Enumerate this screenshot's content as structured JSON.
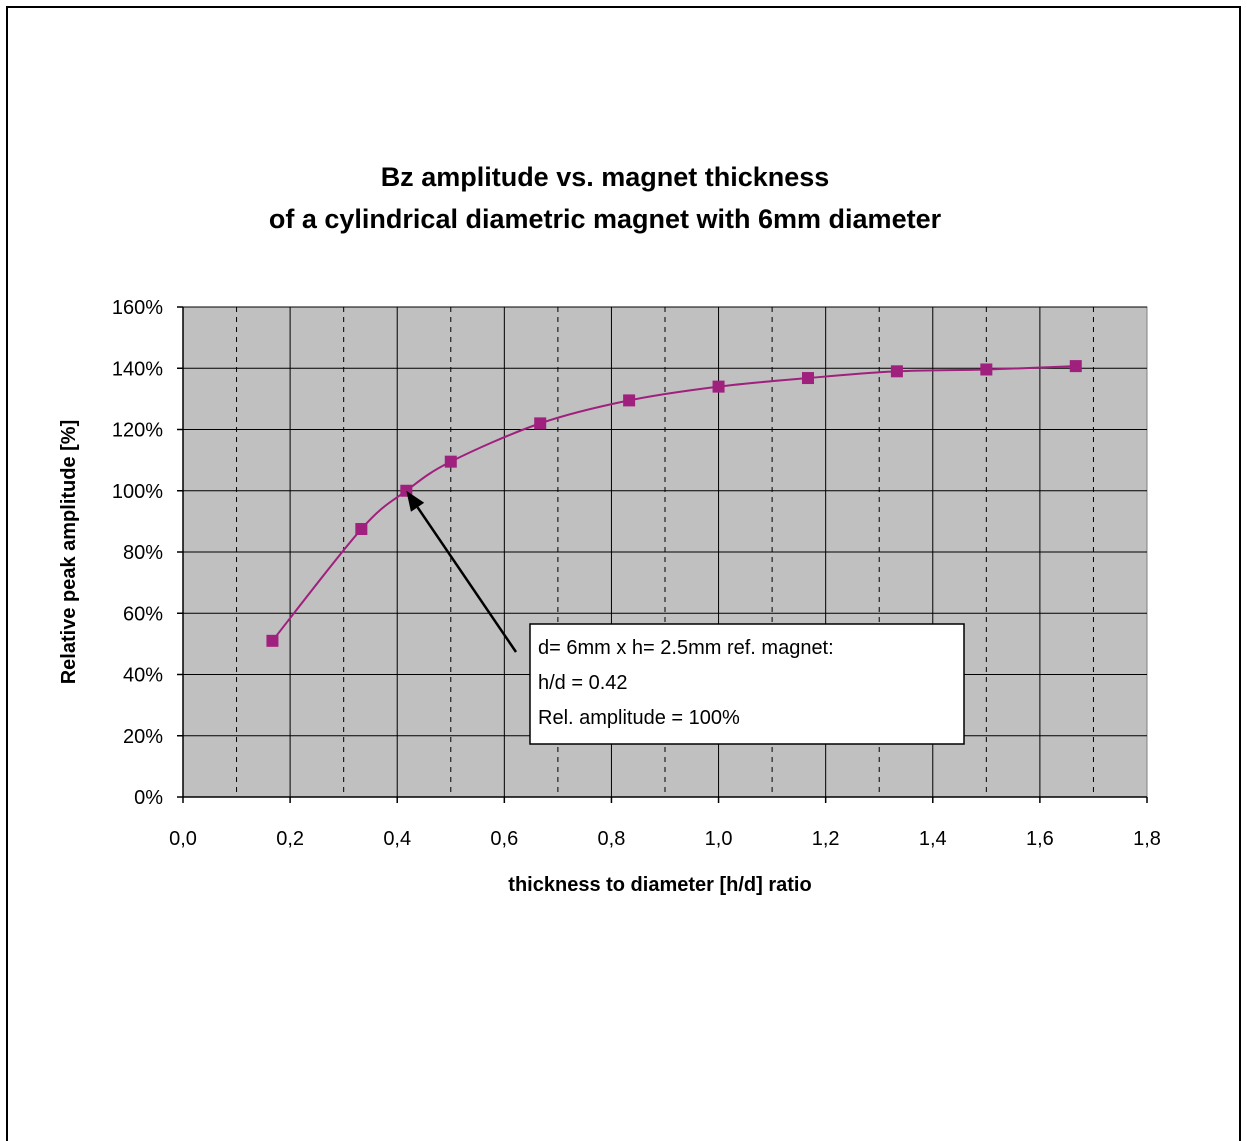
{
  "chart_data": {
    "type": "line",
    "title_lines": [
      "Bz amplitude vs. magnet thickness",
      "of a cylindrical diametric magnet with 6mm diameter"
    ],
    "xlabel": "thickness to diameter [h/d] ratio",
    "ylabel": "Relative peak amplitude [%]",
    "xlim": [
      0,
      1.8
    ],
    "ylim": [
      0,
      160
    ],
    "x_ticks": [
      "0,0",
      "0,2",
      "0,4",
      "0,6",
      "0,8",
      "1,0",
      "1,2",
      "1,4",
      "1,6",
      "1,8"
    ],
    "y_ticks": [
      "0%",
      "20%",
      "40%",
      "60%",
      "80%",
      "100%",
      "120%",
      "140%",
      "160%"
    ],
    "grid": "major solid, minor dashed vertical",
    "plot_background": "#c0c0c0",
    "series": [
      {
        "color": "#a0207e",
        "marker": "square",
        "smooth": true,
        "x": [
          0.167,
          0.333,
          0.417,
          0.5,
          0.667,
          0.833,
          1.0,
          1.167,
          1.333,
          1.5,
          1.667
        ],
        "values": [
          51,
          87.5,
          100,
          109.5,
          122,
          129.5,
          134,
          136.8,
          139,
          139.6,
          140.7
        ]
      }
    ],
    "annotation": {
      "lines": [
        "d= 6mm x h= 2.5mm ref. magnet:",
        "h/d = 0.42",
        "Rel. amplitude = 100%"
      ],
      "target_x": 0.417,
      "target_y": 100
    }
  }
}
